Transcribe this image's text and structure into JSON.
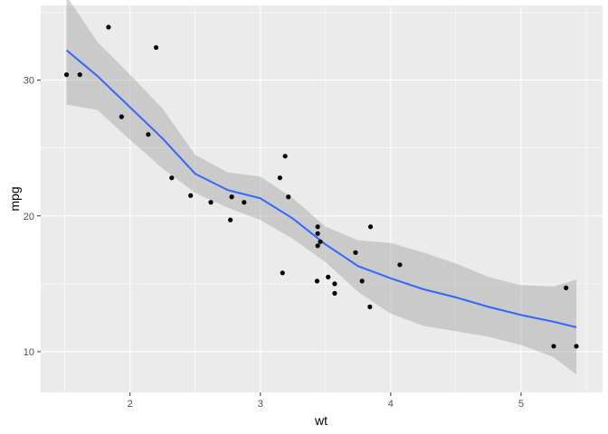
{
  "chart_data": {
    "type": "scatter",
    "xlabel": "wt",
    "ylabel": "mpg",
    "xlim": [
      1.315,
      5.625
    ],
    "ylim": [
      7.0,
      35.5
    ],
    "x_ticks": [
      2,
      3,
      4,
      5
    ],
    "y_ticks": [
      10,
      20,
      30
    ],
    "x_tick_labels": [
      "2",
      "3",
      "4",
      "5"
    ],
    "y_tick_labels": [
      "10",
      "20",
      "30"
    ],
    "grid": true,
    "colors": {
      "panel": "#ebebeb",
      "grid_major": "#ffffff",
      "point": "#000000",
      "smooth_line": "#3366ff",
      "ribbon": "#999999"
    },
    "points": [
      {
        "x": 2.62,
        "y": 21.0
      },
      {
        "x": 2.875,
        "y": 21.0
      },
      {
        "x": 2.32,
        "y": 22.8
      },
      {
        "x": 3.215,
        "y": 21.4
      },
      {
        "x": 3.44,
        "y": 18.7
      },
      {
        "x": 3.46,
        "y": 18.1
      },
      {
        "x": 3.57,
        "y": 14.3
      },
      {
        "x": 3.19,
        "y": 24.4
      },
      {
        "x": 3.15,
        "y": 22.8
      },
      {
        "x": 3.44,
        "y": 19.2
      },
      {
        "x": 3.44,
        "y": 17.8
      },
      {
        "x": 4.07,
        "y": 16.4
      },
      {
        "x": 3.73,
        "y": 17.3
      },
      {
        "x": 3.78,
        "y": 15.2
      },
      {
        "x": 5.25,
        "y": 10.4
      },
      {
        "x": 5.424,
        "y": 10.4
      },
      {
        "x": 5.345,
        "y": 14.7
      },
      {
        "x": 2.2,
        "y": 32.4
      },
      {
        "x": 1.615,
        "y": 30.4
      },
      {
        "x": 1.835,
        "y": 33.9
      },
      {
        "x": 2.465,
        "y": 21.5
      },
      {
        "x": 3.52,
        "y": 15.5
      },
      {
        "x": 3.435,
        "y": 15.2
      },
      {
        "x": 3.84,
        "y": 13.3
      },
      {
        "x": 3.845,
        "y": 19.2
      },
      {
        "x": 1.935,
        "y": 27.3
      },
      {
        "x": 2.14,
        "y": 26.0
      },
      {
        "x": 1.513,
        "y": 30.4
      },
      {
        "x": 3.17,
        "y": 15.8
      },
      {
        "x": 2.77,
        "y": 19.7
      },
      {
        "x": 3.57,
        "y": 15.0
      },
      {
        "x": 2.78,
        "y": 21.4
      }
    ],
    "smooth": {
      "method": "loess",
      "x": [
        1.513,
        1.75,
        2.0,
        2.25,
        2.5,
        2.75,
        3.0,
        3.25,
        3.5,
        3.75,
        4.0,
        4.25,
        4.5,
        4.75,
        5.0,
        5.25,
        5.424
      ],
      "y": [
        32.2,
        30.3,
        28.0,
        25.7,
        23.1,
        21.9,
        21.3,
        19.8,
        17.9,
        16.3,
        15.4,
        14.6,
        14.0,
        13.3,
        12.7,
        12.2,
        11.8
      ],
      "lower": [
        28.2,
        27.8,
        25.6,
        23.5,
        21.7,
        20.6,
        19.7,
        18.3,
        16.6,
        14.4,
        12.8,
        11.9,
        11.5,
        11.1,
        10.5,
        9.6,
        8.3
      ],
      "upper": [
        36.2,
        32.8,
        30.4,
        27.9,
        24.5,
        23.2,
        22.9,
        21.3,
        19.2,
        18.2,
        18.0,
        17.3,
        16.5,
        15.5,
        14.9,
        14.8,
        15.3
      ]
    }
  }
}
